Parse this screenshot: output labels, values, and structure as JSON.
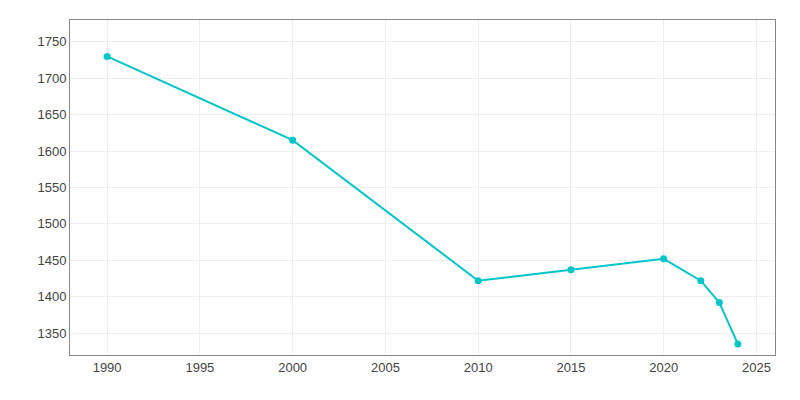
{
  "chart_data": {
    "type": "line",
    "x": [
      1990,
      2000,
      2010,
      2015,
      2020,
      2022,
      2023,
      2024
    ],
    "values": [
      1730,
      1615,
      1422,
      1437,
      1452,
      1422,
      1392,
      1335
    ],
    "color": "#00C5C8",
    "marker": "circle",
    "xlim": [
      1988,
      2026
    ],
    "ylim": [
      1320,
      1780
    ],
    "xticks": [
      1990,
      1995,
      2000,
      2005,
      2010,
      2015,
      2020,
      2025
    ],
    "yticks": [
      1350,
      1400,
      1450,
      1500,
      1550,
      1600,
      1650,
      1700,
      1750
    ],
    "grid": true
  }
}
